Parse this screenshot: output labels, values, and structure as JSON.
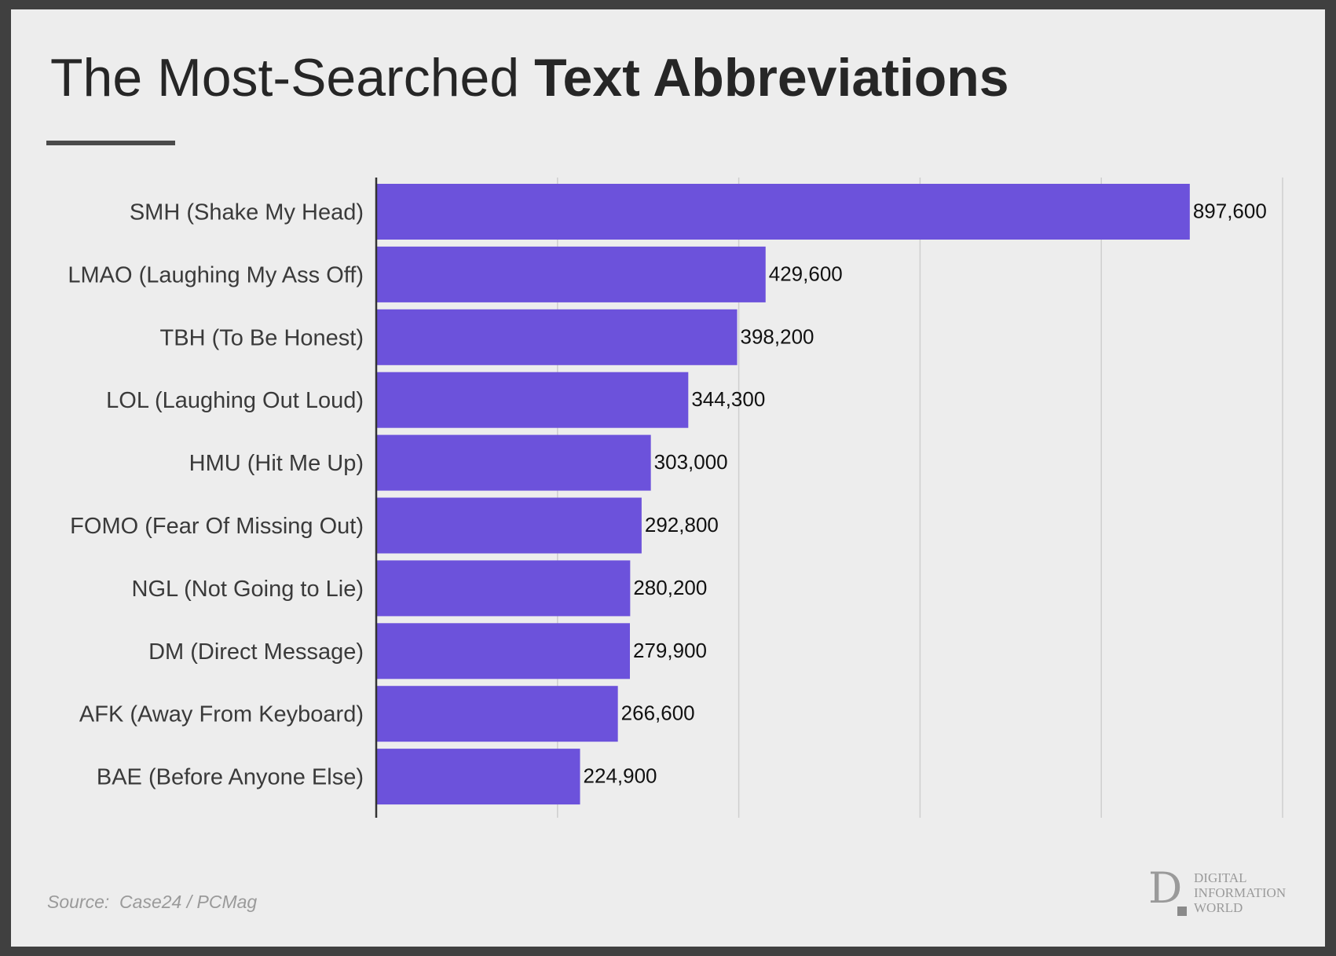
{
  "title": {
    "light": "The Most-Searched ",
    "bold": "Text Abbreviations"
  },
  "source": "Source:  Case24 / PCMag",
  "logo": {
    "letter": "D",
    "line1": "DIGITAL",
    "line2": "INFORMATION",
    "line3": "WORLD"
  },
  "colors": {
    "bar": "#6c52db",
    "background": "#ededed",
    "frame": "#404040"
  },
  "chart_data": {
    "type": "bar",
    "orientation": "horizontal",
    "categories": [
      "SMH (Shake My Head)",
      "LMAO (Laughing My Ass Off)",
      "TBH (To Be Honest)",
      "LOL (Laughing Out Loud)",
      "HMU (Hit Me Up)",
      "FOMO (Fear Of Missing Out)",
      "NGL (Not Going to Lie)",
      "DM (Direct Message)",
      "AFK (Away From Keyboard)",
      "BAE (Before Anyone Else)"
    ],
    "values": [
      897600,
      429600,
      398200,
      344300,
      303000,
      292800,
      280200,
      279900,
      266600,
      224900
    ],
    "value_labels": [
      "897,600",
      "429,600",
      "398,200",
      "344,300",
      "303,000",
      "292,800",
      "280,200",
      "279,900",
      "266,600",
      "224,900"
    ],
    "xlim": [
      0,
      1000000
    ],
    "grid": true,
    "xlabel": "",
    "ylabel": ""
  }
}
